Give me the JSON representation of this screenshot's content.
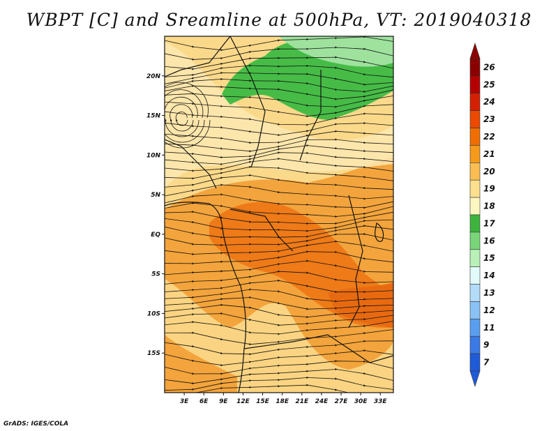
{
  "title": "WBPT [C] and Sreamline at 500hPa, VT: 2019040318",
  "footer": "GrADS: IGES/COLA",
  "map": {
    "lon_labels": [
      "3E",
      "6E",
      "9E",
      "12E",
      "15E",
      "18E",
      "21E",
      "24E",
      "27E",
      "30E",
      "33E"
    ],
    "lon_values": [
      3,
      6,
      9,
      12,
      15,
      18,
      21,
      24,
      27,
      30,
      33
    ],
    "lat_labels": [
      "20N",
      "15N",
      "10N",
      "5N",
      "EQ",
      "5S",
      "10S",
      "15S"
    ],
    "lat_values": [
      20,
      15,
      10,
      5,
      0,
      -5,
      -10,
      -15
    ],
    "lon_range": [
      0,
      35
    ],
    "lat_range": [
      -20,
      25
    ]
  },
  "colorbar": {
    "levels": [
      "26",
      "25",
      "24",
      "23",
      "22",
      "21",
      "20",
      "19",
      "18",
      "17",
      "16",
      "15",
      "14",
      "13",
      "12",
      "11",
      "9",
      "7"
    ],
    "colors": [
      "#8b0000",
      "#b40000",
      "#d42000",
      "#ec4a00",
      "#f06e00",
      "#f59a1a",
      "#f9bd52",
      "#fce08e",
      "#fef6c0",
      "#3cb43c",
      "#78d678",
      "#b8f0b8",
      "#e2fafa",
      "#b2dcfa",
      "#8ac2f5",
      "#5a9ef0",
      "#3a7ae6",
      "#1f5ad9"
    ],
    "arrow_top_color": "#8b0000",
    "arrow_bottom_color": "#1f5ad9"
  },
  "field_colors": {
    "base": "#fbd98a",
    "warm": "#f3a43c",
    "hot": "#ee7a18",
    "cool": "#fde8b0",
    "green": "#46bc46",
    "lightgreen": "#9ee29e"
  }
}
